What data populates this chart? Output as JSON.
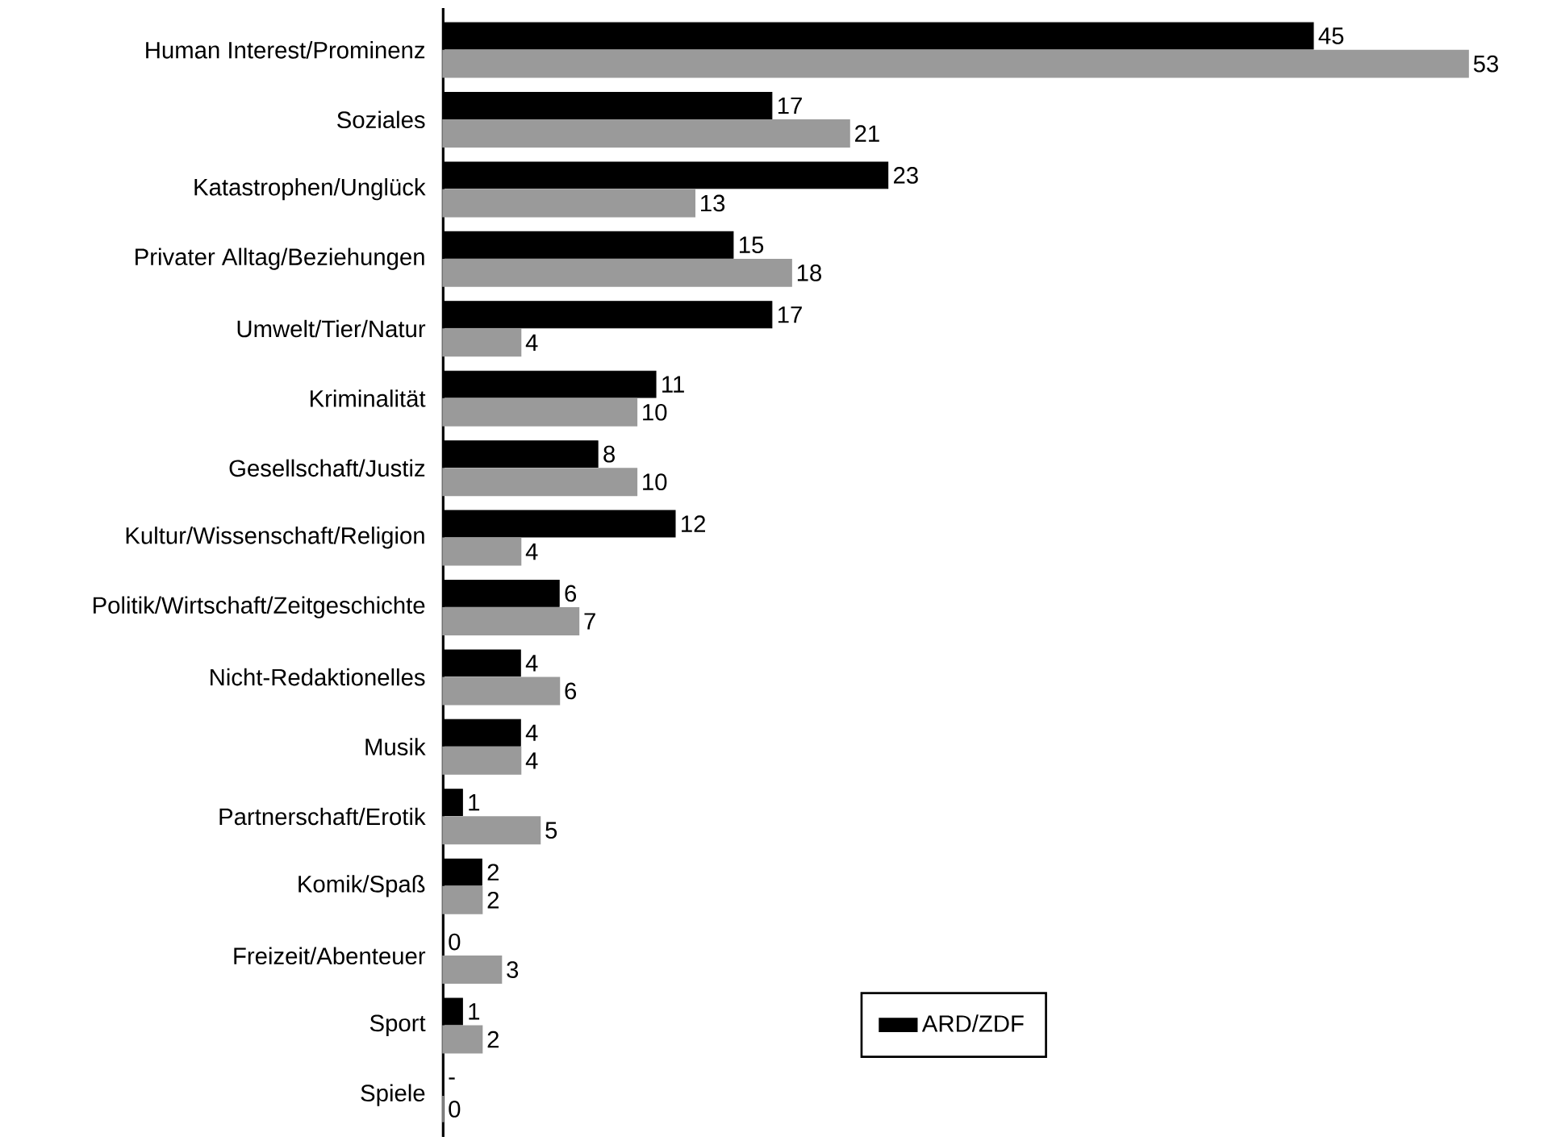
{
  "chart_data": {
    "type": "bar",
    "orientation": "horizontal",
    "legend": "bottom",
    "categories": [
      "Human Interest/Prominenz",
      "Soziales",
      "Katastrophen/Unglück",
      "Privater Alltag/Beziehungen",
      "Umwelt/Tier/Natur",
      "Kriminalität",
      "Gesellschaft/Justiz",
      "Kultur/Wissenschaft/Religion",
      "Politik/Wirtschaft/Zeitgeschichte",
      "Nicht-Redaktionelles",
      "Musik",
      "Partnerschaft/Erotik",
      "Komik/Spaß",
      "Freizeit/Abenteuer",
      "Sport",
      "Spiele"
    ],
    "series": [
      {
        "name": "ARD/ZDF",
        "color": "#000000",
        "values": [
          45,
          17,
          23,
          15,
          17,
          11,
          8,
          12,
          6,
          4,
          4,
          1,
          2,
          0,
          1,
          0
        ],
        "value_labels": [
          "45",
          "17",
          "23",
          "15",
          "17",
          "11",
          "8",
          "12",
          "6",
          "4",
          "4",
          "1",
          "2",
          "0",
          "1",
          "-"
        ]
      },
      {
        "color": "#9a9a9a",
        "values": [
          53,
          21,
          13,
          18,
          4,
          10,
          10,
          4,
          7,
          6,
          4,
          5,
          2,
          3,
          2,
          0
        ],
        "value_labels": [
          "53",
          "21",
          "13",
          "18",
          "4",
          "10",
          "10",
          "4",
          "7",
          "6",
          "4",
          "5",
          "2",
          "3",
          "2",
          "0"
        ]
      }
    ]
  }
}
